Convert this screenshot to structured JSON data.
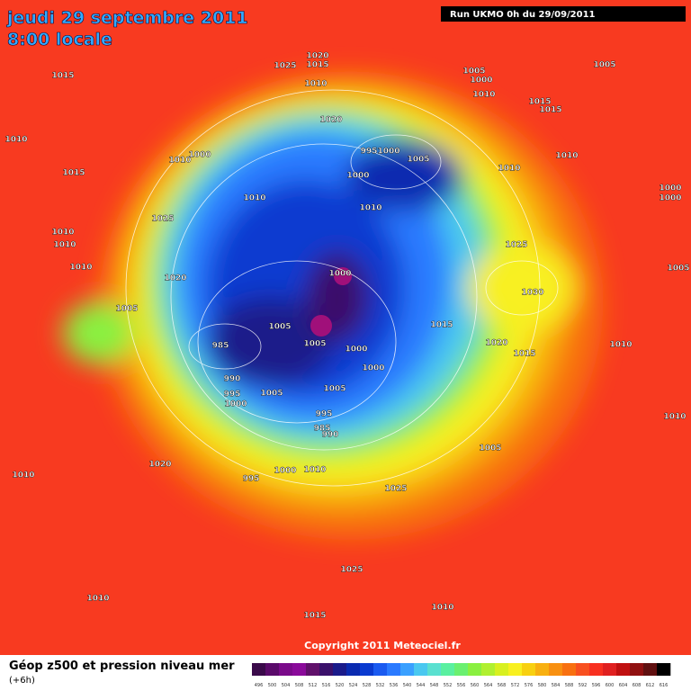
{
  "header": {
    "date": "jeudi 29 septembre 2011",
    "time": "8:00 locale",
    "run": "Run UKMO 0h du 29/09/2011"
  },
  "copyright": "Copyright 2011 Meteociel.fr",
  "footer": {
    "title": "Géop z500 et pression niveau mer",
    "lead": "(+6h)"
  },
  "scale": {
    "labels": [
      "496",
      "500",
      "504",
      "508",
      "512",
      "516",
      "520",
      "524",
      "528",
      "532",
      "536",
      "540",
      "544",
      "548",
      "552",
      "556",
      "560",
      "564",
      "568",
      "572",
      "576",
      "580",
      "584",
      "588",
      "592",
      "596",
      "600",
      "604",
      "608",
      "612",
      "616"
    ],
    "colors": [
      "#3a0a4a",
      "#5a0a6a",
      "#7a0a8a",
      "#8a0a9a",
      "#60106a",
      "#3a106a",
      "#1a1a8a",
      "#0a2ab0",
      "#0a3ad0",
      "#1a5af0",
      "#2a7aff",
      "#3aa0ff",
      "#4ac8f0",
      "#5ae0d0",
      "#5af0a0",
      "#6af070",
      "#8af040",
      "#b0f030",
      "#d8f020",
      "#f8f020",
      "#f8d010",
      "#f8b010",
      "#f89010",
      "#f87010",
      "#f85020",
      "#f83020",
      "#e02020",
      "#c01010",
      "#901010",
      "#601010",
      "#000000"
    ]
  },
  "isobars": [
    "1015",
    "1010",
    "1015",
    "1025",
    "1020",
    "1015",
    "1010",
    "1020",
    "1005",
    "1000",
    "1010",
    "1005",
    "1015",
    "1015",
    "1010",
    "1000",
    "995",
    "1000",
    "1005",
    "1000",
    "1010",
    "1010",
    "1010",
    "1010",
    "1025",
    "1010",
    "1010",
    "1010",
    "1020",
    "1025",
    "1005",
    "1000",
    "1000",
    "1000",
    "1030",
    "1005",
    "1005",
    "1005",
    "1000",
    "1015",
    "1020",
    "1015",
    "1010",
    "985",
    "1000",
    "990",
    "995",
    "1000",
    "1005",
    "1005",
    "995",
    "985",
    "990",
    "1010",
    "1005",
    "1020",
    "995",
    "1000",
    "1010",
    "1010",
    "1025",
    "1025",
    "1010",
    "1015",
    "1010"
  ]
}
